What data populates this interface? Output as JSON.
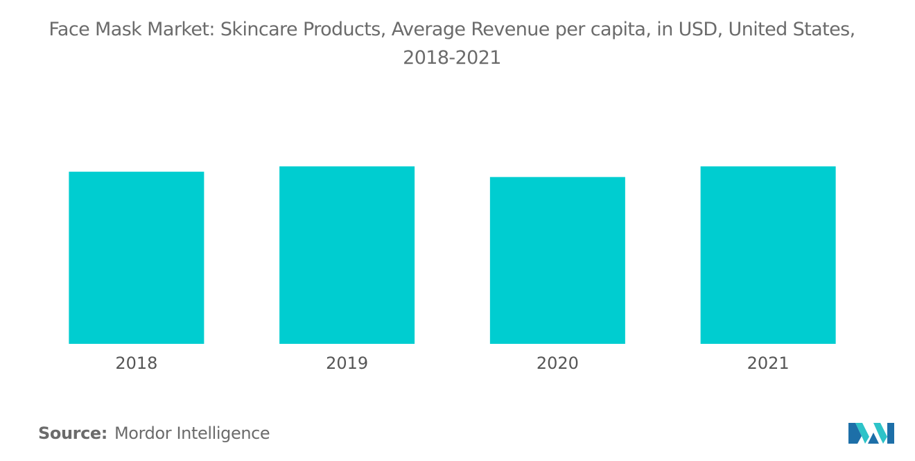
{
  "title_line1": "Face Mask Market: Skincare Products, Average Revenue per capita, in USD, United States,",
  "title_line2": "2018-2021",
  "source": {
    "label": "Source:",
    "text": "Mordor Intelligence"
  },
  "colors": {
    "bar": "#00cdd0",
    "logo_teal": "#2dc3c8",
    "logo_blue": "#1d6fa8"
  },
  "logo_icon": "mordor-intelligence-logo-icon",
  "chart_data": {
    "type": "bar",
    "categories": [
      "2018",
      "2019",
      "2020",
      "2021"
    ],
    "values": [
      0.97,
      1.0,
      0.94,
      1.0
    ],
    "ylim": [
      0,
      1.0
    ],
    "grid": false,
    "legend": "none"
  }
}
